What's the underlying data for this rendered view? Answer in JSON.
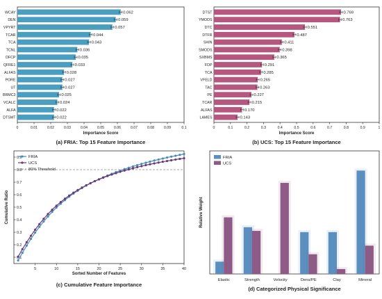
{
  "chart_data": [
    {
      "type": "bar",
      "orientation": "horizontal",
      "title": "(a) FRIA: Top 15 Feature Importance",
      "xlabel": "Importance Score",
      "xlim": [
        0,
        0.1
      ],
      "xticks": [
        "0",
        "0.01",
        "0.02",
        "0.03",
        "0.04",
        "0.05",
        "0.06",
        "0.07",
        "0.08",
        "0.09",
        "0.1"
      ],
      "bar_color": "#4a9ec0",
      "categories": [
        "WCAY",
        "DEN",
        "VPYRT",
        "TCAR",
        "TCA",
        "TCNL",
        "DFCP",
        "QFRE1",
        "ALFAS",
        "PORE",
        "UT",
        "BRMC3",
        "VCALC",
        "ALFA",
        "DTSMT"
      ],
      "values": [
        0.062,
        0.059,
        0.057,
        0.044,
        0.043,
        0.036,
        0.035,
        0.033,
        0.028,
        0.027,
        0.027,
        0.025,
        0.024,
        0.022,
        0.022
      ],
      "value_labels": [
        "0.062",
        "0.059",
        "0.057",
        "0.044",
        "0.043",
        "0.036",
        "0.035",
        "0.033",
        "0.028",
        "0.027",
        "0.027",
        "0.025",
        "0.024",
        "0.022",
        "0.022"
      ]
    },
    {
      "type": "bar",
      "orientation": "horizontal",
      "title": "(b) UCS: Top 15 Feature Importance",
      "xlabel": "Importance Score",
      "xlim": [
        0,
        1.0
      ],
      "xticks": [
        "0",
        "0.1",
        "0.2",
        "0.3",
        "0.4",
        "0.5",
        "0.6",
        "0.7",
        "0.8",
        "0.9",
        "1"
      ],
      "bar_color": "#b5577f",
      "categories": [
        "DTST",
        "YMODS",
        "DTC",
        "DTFR",
        "SHIN",
        "SMODS",
        "SXBMS",
        "FDP",
        "TCA",
        "VFELD",
        "TAC",
        "PE",
        "TCAR",
        "ALFAS",
        "LAMES"
      ],
      "values": [
        0.769,
        0.763,
        0.551,
        0.487,
        0.411,
        0.398,
        0.365,
        0.291,
        0.285,
        0.265,
        0.263,
        0.227,
        0.215,
        0.17,
        0.143
      ],
      "value_labels": [
        "0.769",
        "0.763",
        "0.551",
        "0.487",
        "0.411",
        "0.398",
        "0.365",
        "0.291",
        "0.285",
        "0.265",
        "0.263",
        "0.227",
        "0.215",
        "0.170",
        "0.143"
      ]
    },
    {
      "type": "line",
      "title": "(c) Cumulative Feature Importance",
      "xlabel": "Sorted Number of Features",
      "ylabel": "Cumulative Ratio",
      "xlim": [
        0,
        40
      ],
      "ylim": [
        0.05,
        0.95
      ],
      "xticks": [
        "5",
        "10",
        "15",
        "20",
        "25",
        "30",
        "35",
        "40"
      ],
      "yticks": [
        "0.1",
        "0.2",
        "0.3",
        "0.4",
        "0.5",
        "0.6",
        "0.7",
        "0.8",
        "0.9"
      ],
      "threshold": 0.8,
      "threshold_label": "80% Threshold",
      "series": [
        {
          "name": "FRIA",
          "color": "#4a8ab8",
          "x": [
            1,
            2,
            3,
            4,
            5,
            6,
            7,
            8,
            9,
            10,
            11,
            12,
            13,
            14,
            15,
            16,
            17,
            18,
            19,
            20,
            21,
            22,
            23,
            24,
            25,
            26,
            27,
            28,
            29,
            30,
            31,
            32,
            33,
            34,
            35,
            36,
            37,
            38,
            39,
            40
          ],
          "values": [
            0.075,
            0.136,
            0.193,
            0.247,
            0.297,
            0.343,
            0.386,
            0.426,
            0.463,
            0.497,
            0.528,
            0.557,
            0.584,
            0.609,
            0.632,
            0.653,
            0.673,
            0.691,
            0.708,
            0.724,
            0.739,
            0.753,
            0.767,
            0.78,
            0.792,
            0.804,
            0.815,
            0.826,
            0.836,
            0.846,
            0.855,
            0.864,
            0.873,
            0.881,
            0.889,
            0.897,
            0.904,
            0.911,
            0.918,
            0.925
          ]
        },
        {
          "name": "UCS",
          "color": "#6a3a78",
          "x": [
            1,
            2,
            3,
            4,
            5,
            6,
            7,
            8,
            9,
            10,
            11,
            12,
            13,
            14,
            15,
            16,
            17,
            18,
            19,
            20,
            21,
            22,
            23,
            24,
            25,
            26,
            27,
            28,
            29,
            30,
            31,
            32,
            33,
            34,
            35,
            36,
            37,
            38,
            39,
            40
          ],
          "values": [
            0.105,
            0.165,
            0.22,
            0.272,
            0.32,
            0.365,
            0.407,
            0.445,
            0.48,
            0.512,
            0.541,
            0.568,
            0.593,
            0.616,
            0.637,
            0.657,
            0.675,
            0.692,
            0.708,
            0.722,
            0.736,
            0.749,
            0.761,
            0.772,
            0.783,
            0.793,
            0.802,
            0.811,
            0.82,
            0.828,
            0.836,
            0.843,
            0.85,
            0.857,
            0.863,
            0.869,
            0.875,
            0.881,
            0.886,
            0.891
          ]
        }
      ]
    },
    {
      "type": "bar",
      "title": "(d) Categorized Physical Significance",
      "ylabel": "Relative Weight",
      "ylim": [
        0,
        0.5
      ],
      "categories": [
        "Elastic",
        "Strength",
        "Velocity",
        "Dens/PE",
        "Clay",
        "Mineral"
      ],
      "series": [
        {
          "name": "FRIA",
          "color": "#5b8fc0",
          "values": [
            0.05,
            0.19,
            0.0,
            0.17,
            0.17,
            0.42
          ]
        },
        {
          "name": "UCS",
          "color": "#8e5a86",
          "values": [
            0.23,
            0.175,
            0.37,
            0.08,
            0.02,
            0.115
          ]
        }
      ]
    }
  ]
}
